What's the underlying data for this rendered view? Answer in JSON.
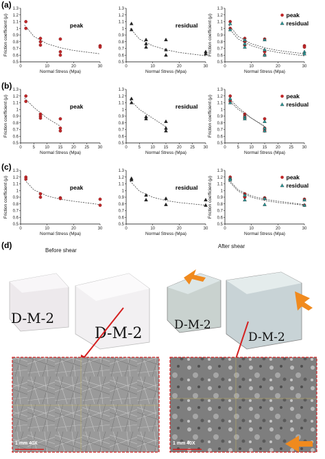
{
  "panel_labels": [
    "(a)",
    "(b)",
    "(c)",
    "(d)"
  ],
  "photos": {
    "before_caption": "Before shear",
    "after_caption": "After shear",
    "sample_label": "D-M-2",
    "scale_left": "1 mm 40X",
    "scale_right": "1 mm 40X"
  },
  "chart_data": [
    {
      "type": "scatter",
      "row": 0,
      "col": 0,
      "inlabel": "peak",
      "xlabel": "Normal Stress (Mpa)",
      "ylabel": "Friction coefficient (μ)",
      "xlim": [
        0,
        30
      ],
      "ylim": [
        0.5,
        1.3
      ],
      "xticks": [
        0,
        10,
        20,
        30
      ],
      "yticks": [
        0.5,
        0.6,
        0.7,
        0.8,
        0.9,
        1.0,
        1.1,
        1.2,
        1.3
      ],
      "series": [
        {
          "marker": "circle",
          "x": [
            2,
            2,
            7.5,
            7.5,
            7.5,
            15,
            15,
            15,
            30,
            30
          ],
          "y": [
            1.1,
            1.0,
            0.85,
            0.8,
            0.75,
            0.84,
            0.65,
            0.6,
            0.74,
            0.72
          ],
          "fit": [
            [
              1.5,
              1.05
            ],
            [
              5,
              0.88
            ],
            [
              10,
              0.77
            ],
            [
              15,
              0.71
            ],
            [
              20,
              0.67
            ],
            [
              30,
              0.62
            ]
          ]
        }
      ]
    },
    {
      "type": "scatter",
      "row": 0,
      "col": 1,
      "inlabel": "residual",
      "xlabel": "Normal Stress (Mpa)",
      "ylabel": "",
      "xlim": [
        0,
        30
      ],
      "ylim": [
        0.5,
        1.3
      ],
      "xticks": [
        0,
        10,
        20,
        30
      ],
      "yticks": [
        0.5,
        0.6,
        0.7,
        0.8,
        0.9,
        1.0,
        1.1,
        1.2,
        1.3
      ],
      "series": [
        {
          "marker": "triangle",
          "x": [
            2,
            2,
            7.5,
            7.5,
            7.5,
            15,
            15,
            15,
            30,
            30
          ],
          "y": [
            1.07,
            0.98,
            0.83,
            0.77,
            0.72,
            0.83,
            0.68,
            0.6,
            0.65,
            0.62
          ],
          "fit": [
            [
              1.5,
              1.0
            ],
            [
              5,
              0.84
            ],
            [
              10,
              0.74
            ],
            [
              15,
              0.68
            ],
            [
              20,
              0.64
            ],
            [
              30,
              0.59
            ]
          ]
        }
      ]
    },
    {
      "type": "scatter",
      "row": 0,
      "col": 2,
      "inlabel": "",
      "legend": [
        "peak",
        "residual"
      ],
      "xlabel": "Normal Stress (Mpa)",
      "ylabel": "Friction coefficient (μ)",
      "xlim": [
        0,
        30
      ],
      "ylim": [
        0.5,
        1.3
      ],
      "xticks": [
        0,
        10,
        20,
        30
      ],
      "yticks": [
        0.5,
        0.6,
        0.7,
        0.8,
        0.9,
        1.0,
        1.1,
        1.2,
        1.3
      ],
      "series": [
        {
          "name": "peak",
          "marker": "circle",
          "x": [
            2,
            2,
            7.5,
            7.5,
            7.5,
            15,
            15,
            15,
            30,
            30
          ],
          "y": [
            1.1,
            1.0,
            0.85,
            0.8,
            0.75,
            0.84,
            0.65,
            0.6,
            0.74,
            0.72
          ],
          "fit": [
            [
              1.5,
              1.05
            ],
            [
              5,
              0.88
            ],
            [
              10,
              0.77
            ],
            [
              15,
              0.71
            ],
            [
              20,
              0.67
            ],
            [
              30,
              0.62
            ]
          ]
        },
        {
          "name": "residual",
          "marker": "triangle",
          "x": [
            2,
            2,
            7.5,
            7.5,
            7.5,
            15,
            15,
            15,
            30,
            30
          ],
          "y": [
            1.07,
            0.98,
            0.83,
            0.77,
            0.72,
            0.83,
            0.68,
            0.6,
            0.65,
            0.62
          ],
          "fit": [
            [
              1.5,
              1.0
            ],
            [
              5,
              0.84
            ],
            [
              10,
              0.74
            ],
            [
              15,
              0.68
            ],
            [
              20,
              0.64
            ],
            [
              30,
              0.59
            ]
          ]
        }
      ]
    },
    {
      "type": "scatter",
      "row": 1,
      "col": 0,
      "inlabel": "peak",
      "xlabel": "Normal Stress (Mpa)",
      "ylabel": "Friction coefficient (μ)",
      "xlim": [
        0,
        30
      ],
      "ylim": [
        0.5,
        1.3
      ],
      "xticks": [
        0,
        5,
        10,
        15,
        20,
        25,
        30
      ],
      "yticks": [
        0.5,
        0.6,
        0.7,
        0.8,
        0.9,
        1.0,
        1.1,
        1.2,
        1.3
      ],
      "series": [
        {
          "marker": "circle",
          "x": [
            2,
            2,
            7.5,
            7.5,
            7.5,
            15,
            15,
            15
          ],
          "y": [
            1.2,
            1.12,
            0.93,
            0.9,
            0.87,
            0.86,
            0.72,
            0.68
          ],
          "fit": [
            [
              1.5,
              1.17
            ],
            [
              5,
              1.03
            ],
            [
              10,
              0.87
            ],
            [
              15,
              0.75
            ]
          ]
        }
      ]
    },
    {
      "type": "scatter",
      "row": 1,
      "col": 1,
      "inlabel": "residual",
      "xlabel": "Normal Stress (Mpa)",
      "ylabel": "",
      "xlim": [
        0,
        30
      ],
      "ylim": [
        0.5,
        1.3
      ],
      "xticks": [
        0,
        5,
        10,
        15,
        20,
        25,
        30
      ],
      "yticks": [
        0.5,
        0.6,
        0.7,
        0.8,
        0.9,
        1.0,
        1.1,
        1.2,
        1.3
      ],
      "series": [
        {
          "marker": "triangle",
          "x": [
            2,
            2,
            7.5,
            7.5,
            15,
            15,
            15
          ],
          "y": [
            1.16,
            1.1,
            0.89,
            0.86,
            0.82,
            0.72,
            0.68
          ],
          "fit": [
            [
              1.5,
              1.14
            ],
            [
              5,
              1.0
            ],
            [
              10,
              0.87
            ],
            [
              15,
              0.74
            ]
          ]
        }
      ]
    },
    {
      "type": "scatter",
      "row": 1,
      "col": 2,
      "inlabel": "",
      "legend": [
        "peak",
        "residual"
      ],
      "xlabel": "Normal Stress (Mpa)",
      "ylabel": "Friction coefficient (μ)",
      "xlim": [
        0,
        30
      ],
      "ylim": [
        0.5,
        1.3
      ],
      "xticks": [
        0,
        5,
        10,
        15,
        20,
        25,
        30
      ],
      "yticks": [
        0.5,
        0.6,
        0.7,
        0.8,
        0.9,
        1.0,
        1.1,
        1.2,
        1.3
      ],
      "series": [
        {
          "name": "peak",
          "marker": "circle",
          "x": [
            2,
            2,
            7.5,
            7.5,
            7.5,
            15,
            15,
            15
          ],
          "y": [
            1.2,
            1.12,
            0.93,
            0.9,
            0.87,
            0.86,
            0.72,
            0.68
          ],
          "fit": [
            [
              1.5,
              1.17
            ],
            [
              5,
              1.03
            ],
            [
              10,
              0.87
            ],
            [
              15,
              0.75
            ]
          ]
        },
        {
          "name": "residual",
          "marker": "triangle",
          "x": [
            2,
            2,
            7.5,
            7.5,
            15,
            15,
            15
          ],
          "y": [
            1.16,
            1.1,
            0.89,
            0.86,
            0.82,
            0.72,
            0.68
          ],
          "fit": [
            [
              1.5,
              1.14
            ],
            [
              5,
              1.0
            ],
            [
              10,
              0.87
            ],
            [
              15,
              0.74
            ]
          ]
        }
      ]
    },
    {
      "type": "scatter",
      "row": 2,
      "col": 0,
      "inlabel": "peak",
      "xlabel": "Normal Stress (Mpa)",
      "ylabel": "Friction coefficient (μ)",
      "xlim": [
        0,
        30
      ],
      "ylim": [
        0.5,
        1.3
      ],
      "xticks": [
        0,
        10,
        20,
        30
      ],
      "yticks": [
        0.5,
        0.6,
        0.7,
        0.8,
        0.9,
        1.0,
        1.1,
        1.2,
        1.3
      ],
      "series": [
        {
          "marker": "circle",
          "x": [
            2,
            2,
            7.5,
            7.5,
            15,
            15,
            30,
            30
          ],
          "y": [
            1.2,
            1.17,
            0.95,
            0.9,
            0.89,
            0.88,
            0.87,
            0.78
          ],
          "fit": [
            [
              1.5,
              1.16
            ],
            [
              5,
              1.01
            ],
            [
              10,
              0.92
            ],
            [
              15,
              0.87
            ],
            [
              20,
              0.84
            ],
            [
              30,
              0.79
            ]
          ]
        }
      ]
    },
    {
      "type": "scatter",
      "row": 2,
      "col": 1,
      "inlabel": "residual",
      "xlabel": "Normal Stress (Mpa)",
      "ylabel": "",
      "xlim": [
        0,
        30
      ],
      "ylim": [
        0.5,
        1.3
      ],
      "xticks": [
        0,
        10,
        20,
        30
      ],
      "yticks": [
        0.5,
        0.6,
        0.7,
        0.8,
        0.9,
        1.0,
        1.1,
        1.2,
        1.3
      ],
      "series": [
        {
          "marker": "triangle",
          "x": [
            2,
            2,
            7.5,
            7.5,
            15,
            15,
            30,
            30
          ],
          "y": [
            1.18,
            1.16,
            0.93,
            0.86,
            0.88,
            0.79,
            0.86,
            0.78
          ],
          "fit": [
            [
              1.5,
              1.14
            ],
            [
              5,
              0.99
            ],
            [
              10,
              0.9
            ],
            [
              15,
              0.85
            ],
            [
              20,
              0.82
            ],
            [
              30,
              0.78
            ]
          ]
        }
      ]
    },
    {
      "type": "scatter",
      "row": 2,
      "col": 2,
      "inlabel": "",
      "legend": [
        "peak",
        "residual"
      ],
      "xlabel": "Normal Stress (Mpa)",
      "ylabel": "Friction coefficient (μ)",
      "xlim": [
        0,
        30
      ],
      "ylim": [
        0.5,
        1.3
      ],
      "xticks": [
        0,
        10,
        20,
        30
      ],
      "yticks": [
        0.5,
        0.6,
        0.7,
        0.8,
        0.9,
        1.0,
        1.1,
        1.2,
        1.3
      ],
      "series": [
        {
          "name": "peak",
          "marker": "circle",
          "x": [
            2,
            2,
            7.5,
            7.5,
            15,
            15,
            30,
            30
          ],
          "y": [
            1.2,
            1.17,
            0.95,
            0.9,
            0.89,
            0.88,
            0.87,
            0.78
          ],
          "fit": [
            [
              1.5,
              1.16
            ],
            [
              5,
              1.01
            ],
            [
              10,
              0.92
            ],
            [
              15,
              0.87
            ],
            [
              20,
              0.84
            ],
            [
              30,
              0.79
            ]
          ]
        },
        {
          "name": "residual",
          "marker": "triangle",
          "x": [
            2,
            2,
            7.5,
            7.5,
            15,
            15,
            30,
            30
          ],
          "y": [
            1.18,
            1.16,
            0.93,
            0.86,
            0.88,
            0.79,
            0.86,
            0.78
          ],
          "fit": [
            [
              1.5,
              1.14
            ],
            [
              5,
              0.99
            ],
            [
              10,
              0.9
            ],
            [
              15,
              0.85
            ],
            [
              20,
              0.82
            ],
            [
              30,
              0.78
            ]
          ]
        }
      ]
    }
  ],
  "colors": {
    "peak": "#c0282a",
    "residual": "#2a9a9a",
    "fit": "#444444",
    "arrow_red": "#d42020",
    "arrow_orange": "#f08a1e",
    "frame": "#d42020"
  }
}
